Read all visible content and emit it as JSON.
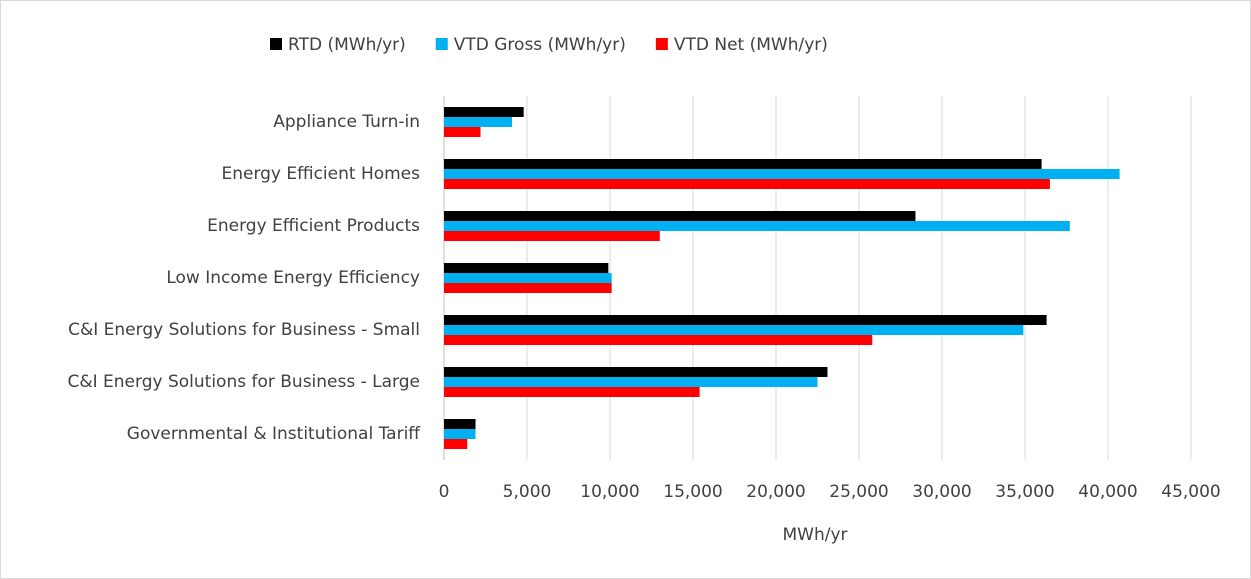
{
  "chart_data": {
    "type": "hbar",
    "categories": [
      "Appliance Turn-in",
      "Energy Efficient Homes",
      "Energy Efficient Products",
      "Low Income Energy Efficiency",
      "C&I Energy Solutions for Business - Small",
      "C&I Energy Solutions for Business - Large",
      "Governmental & Institutional Tariff"
    ],
    "series": [
      {
        "name": "RTD (MWh/yr)",
        "color": "#000000",
        "values": [
          4800,
          36000,
          28400,
          9900,
          36300,
          23100,
          1900
        ]
      },
      {
        "name": "VTD Gross (MWh/yr)",
        "color": "#00b0f0",
        "values": [
          4100,
          40700,
          37700,
          10100,
          34900,
          22500,
          1900
        ]
      },
      {
        "name": "VTD Net (MWh/yr)",
        "color": "#ff0000",
        "values": [
          2200,
          36500,
          13000,
          10100,
          25800,
          15400,
          1400
        ]
      }
    ],
    "x_label": "MWh/yr",
    "xlim": [
      0,
      45000
    ],
    "xticks": [
      0,
      {
        "value": 5000,
        "label": "5,000"
      },
      {
        "value": 10000,
        "label": "10,000"
      },
      {
        "value": 15000,
        "label": "15,000"
      },
      {
        "value": 20000,
        "label": "20,000"
      },
      {
        "value": 25000,
        "label": "25,000"
      },
      {
        "value": 30000,
        "label": "30,000"
      },
      {
        "value": 35000,
        "label": "35,000"
      },
      {
        "value": 40000,
        "label": "40,000"
      },
      {
        "value": 45000,
        "label": "45,000"
      }
    ],
    "grid": true,
    "legend": "top"
  }
}
